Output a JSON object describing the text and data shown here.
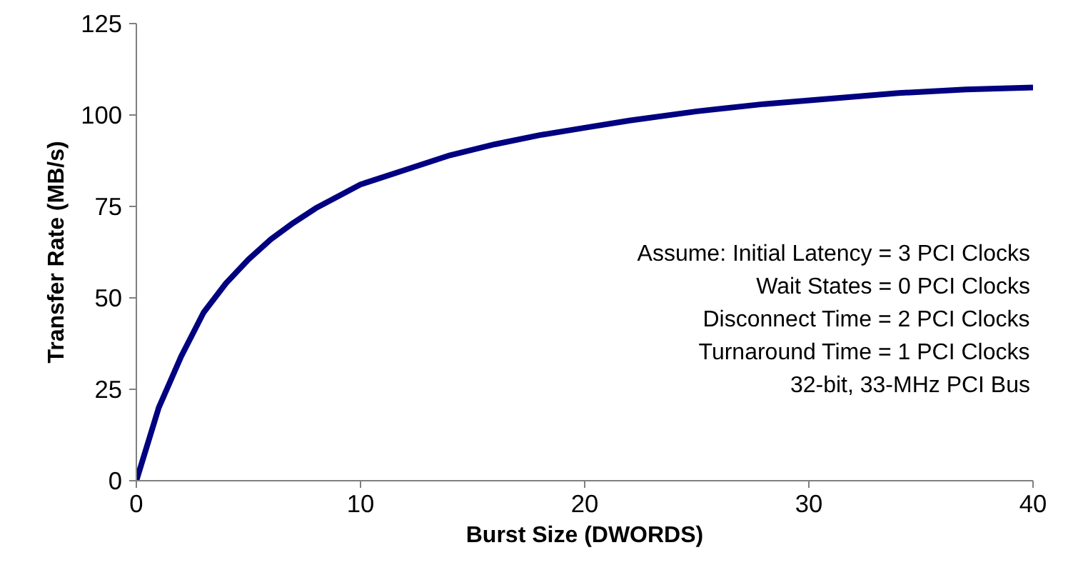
{
  "chart_data": {
    "type": "line",
    "xlabel": "Burst Size (DWORDS)",
    "ylabel": "Transfer Rate (MB/s)",
    "x": [
      0,
      1,
      2,
      3,
      4,
      5,
      6,
      7,
      8,
      10,
      12,
      14,
      16,
      18,
      20,
      22,
      25,
      28,
      31,
      34,
      37,
      40
    ],
    "series": [
      {
        "color": "#000080",
        "values": [
          0,
          20,
          34,
          46,
          54,
          60.5,
          66,
          70.5,
          74.5,
          81,
          85,
          89,
          92,
          94.5,
          96.5,
          98.5,
          101,
          103,
          104.5,
          106,
          107,
          107.5
        ]
      }
    ],
    "xlim": [
      0,
      40
    ],
    "ylim": [
      0,
      125
    ],
    "xticks": [
      0,
      10,
      20,
      30,
      40
    ],
    "yticks": [
      0,
      25,
      50,
      75,
      100,
      125
    ],
    "annotations": [
      "Assume: Initial Latency = 3 PCI Clocks",
      "Wait States = 0 PCI Clocks",
      "Disconnect Time = 2 PCI Clocks",
      "Turnaround Time = 1 PCI Clocks",
      "32-bit, 33-MHz PCI Bus"
    ],
    "grid": false,
    "marker": "none",
    "line_style": "solid"
  }
}
